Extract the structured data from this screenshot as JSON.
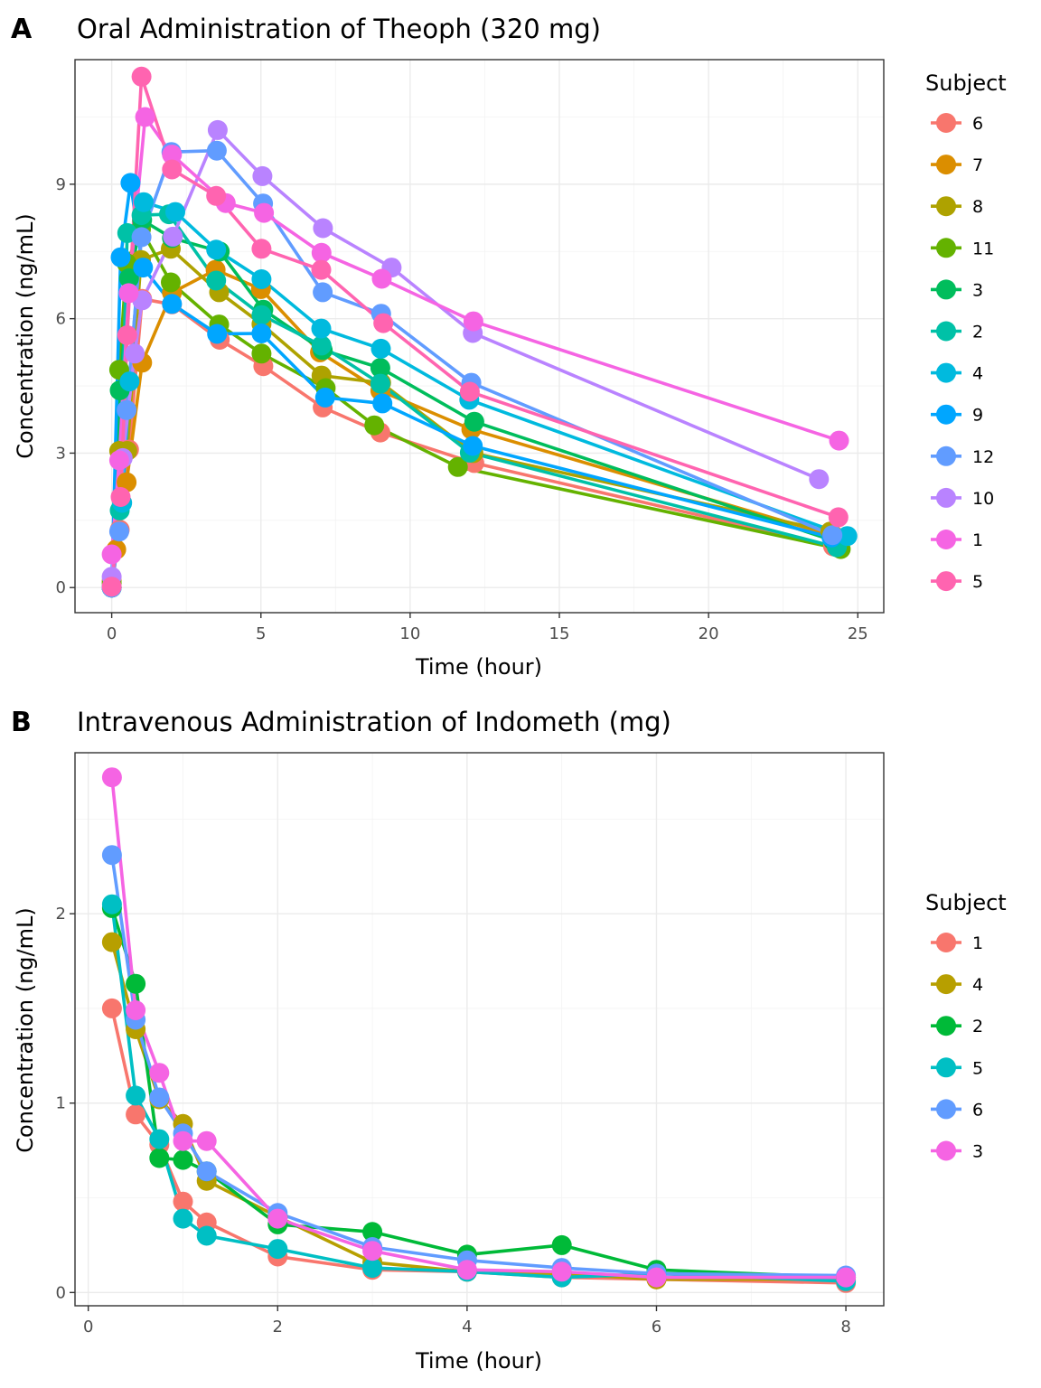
{
  "chart_data": [
    {
      "tag": "A",
      "type": "line",
      "title": "Oral Administration of Theoph (320 mg)",
      "xlabel": "Time (hour)",
      "ylabel": "Concentration (ng/mL)",
      "xlim": [
        -1.23,
        25.87
      ],
      "ylim": [
        -0.56,
        11.78
      ],
      "xticks": [
        0,
        5,
        10,
        15,
        20,
        25
      ],
      "yticks": [
        0,
        3,
        6,
        9
      ],
      "grid": true,
      "legend": {
        "title": "Subject",
        "placement": "right"
      },
      "series": [
        {
          "name": "6",
          "color": "#F8766D",
          "x": [
            0,
            0.27,
            0.58,
            1.02,
            2.02,
            3.62,
            5.08,
            7.07,
            9.0,
            12.15,
            24.17
          ],
          "y": [
            0,
            1.29,
            3.08,
            6.44,
            6.32,
            5.53,
            4.94,
            4.02,
            3.46,
            2.78,
            0.92
          ]
        },
        {
          "name": "7",
          "color": "#DB8E00",
          "x": [
            0,
            0.15,
            0.5,
            1.02,
            2.02,
            3.48,
            5.0,
            6.98,
            9.0,
            12.05,
            24.22
          ],
          "y": [
            0.15,
            0.85,
            2.35,
            5.02,
            6.58,
            7.09,
            6.66,
            5.25,
            4.39,
            3.53,
            1.15
          ]
        },
        {
          "name": "8",
          "color": "#AEA200",
          "x": [
            0,
            0.25,
            0.52,
            0.98,
            1.98,
            3.6,
            5.02,
            7.03,
            9.03,
            12.12,
            24.08
          ],
          "y": [
            0,
            3.05,
            3.05,
            7.31,
            7.56,
            6.59,
            5.88,
            4.73,
            4.57,
            3.0,
            1.25
          ]
        },
        {
          "name": "11",
          "color": "#64B200",
          "x": [
            0,
            0.25,
            0.5,
            0.98,
            1.98,
            3.6,
            5.02,
            7.17,
            8.8,
            11.6,
            24.43
          ],
          "y": [
            0.1,
            4.86,
            7.24,
            8.0,
            6.81,
            5.87,
            5.22,
            4.45,
            3.62,
            2.69,
            0.86
          ]
        },
        {
          "name": "3",
          "color": "#00BD5C",
          "x": [
            0,
            0.27,
            0.58,
            1.02,
            2.02,
            3.62,
            5.08,
            7.07,
            9.0,
            12.15,
            24.17
          ],
          "y": [
            0,
            4.4,
            6.9,
            8.2,
            7.8,
            7.5,
            6.2,
            5.3,
            4.9,
            3.7,
            1.05
          ]
        },
        {
          "name": "2",
          "color": "#00C1A7",
          "x": [
            0,
            0.27,
            0.52,
            1.0,
            1.92,
            3.5,
            5.02,
            7.03,
            9.0,
            12.0,
            24.3
          ],
          "y": [
            0,
            1.72,
            7.91,
            8.31,
            8.33,
            6.85,
            6.08,
            5.4,
            4.55,
            3.01,
            0.9
          ]
        },
        {
          "name": "4",
          "color": "#00BADE",
          "x": [
            0,
            0.35,
            0.6,
            1.07,
            2.13,
            3.5,
            5.02,
            7.02,
            9.02,
            11.98,
            24.65
          ],
          "y": [
            0,
            1.89,
            4.6,
            8.6,
            8.38,
            7.54,
            6.88,
            5.78,
            5.33,
            4.19,
            1.15
          ]
        },
        {
          "name": "9",
          "color": "#00A6FF",
          "x": [
            0,
            0.3,
            0.63,
            1.05,
            2.02,
            3.53,
            5.02,
            7.15,
            9.07,
            12.1,
            24.12
          ],
          "y": [
            0,
            7.37,
            9.03,
            7.14,
            6.33,
            5.66,
            5.67,
            4.24,
            4.11,
            3.16,
            1.12
          ]
        },
        {
          "name": "12",
          "color": "#619CFF",
          "x": [
            0,
            0.25,
            0.5,
            1.0,
            2.0,
            3.52,
            5.07,
            7.07,
            9.03,
            12.05,
            24.15
          ],
          "y": [
            0,
            1.25,
            3.96,
            7.82,
            9.72,
            9.75,
            8.57,
            6.59,
            6.11,
            4.57,
            1.17
          ]
        },
        {
          "name": "10",
          "color": "#B983FF",
          "x": [
            0,
            0.37,
            0.77,
            1.02,
            2.05,
            3.55,
            5.05,
            7.08,
            9.38,
            12.1,
            23.7
          ],
          "y": [
            0.24,
            2.89,
            5.22,
            6.41,
            7.83,
            10.21,
            9.18,
            8.02,
            7.14,
            5.68,
            2.42
          ]
        },
        {
          "name": "1",
          "color": "#F564E3",
          "x": [
            0,
            0.25,
            0.57,
            1.12,
            2.02,
            3.82,
            5.1,
            7.03,
            9.05,
            12.12,
            24.37
          ],
          "y": [
            0.74,
            2.84,
            6.57,
            10.5,
            9.66,
            8.58,
            8.36,
            7.47,
            6.89,
            5.94,
            3.28
          ]
        },
        {
          "name": "5",
          "color": "#FF64B0",
          "x": [
            0,
            0.3,
            0.52,
            1.0,
            2.02,
            3.5,
            5.02,
            7.02,
            9.1,
            12.0,
            24.35
          ],
          "y": [
            0.02,
            2.02,
            5.63,
            11.4,
            9.33,
            8.74,
            7.56,
            7.09,
            5.9,
            4.37,
            1.57
          ]
        }
      ]
    },
    {
      "tag": "B",
      "type": "line",
      "title": "Intravenous Administration of Indometh (mg)",
      "xlabel": "Time (hour)",
      "ylabel": "Concentration (ng/mL)",
      "xlim": [
        -0.14,
        8.4
      ],
      "ylim": [
        -0.07,
        2.85
      ],
      "xticks": [
        0,
        2,
        4,
        6,
        8
      ],
      "yticks": [
        0,
        1,
        2
      ],
      "grid": true,
      "legend": {
        "title": "Subject",
        "placement": "right"
      },
      "series": [
        {
          "name": "1",
          "color": "#F8766D",
          "x": [
            0.25,
            0.5,
            0.75,
            1,
            1.25,
            2,
            3,
            4,
            5,
            6,
            8
          ],
          "y": [
            1.5,
            0.94,
            0.78,
            0.48,
            0.37,
            0.19,
            0.12,
            0.11,
            0.08,
            0.07,
            0.05
          ]
        },
        {
          "name": "4",
          "color": "#B79F00",
          "x": [
            0.25,
            0.5,
            0.75,
            1,
            1.25,
            2,
            3,
            4,
            5,
            6,
            8
          ],
          "y": [
            1.85,
            1.39,
            1.02,
            0.89,
            0.59,
            0.4,
            0.16,
            0.11,
            0.1,
            0.07,
            0.07
          ]
        },
        {
          "name": "2",
          "color": "#00BA38",
          "x": [
            0.25,
            0.5,
            0.75,
            1,
            1.25,
            2,
            3,
            4,
            5,
            6,
            8
          ],
          "y": [
            2.03,
            1.63,
            0.71,
            0.7,
            0.64,
            0.36,
            0.32,
            0.2,
            0.25,
            0.12,
            0.08
          ]
        },
        {
          "name": "5",
          "color": "#00BFC4",
          "x": [
            0.25,
            0.5,
            0.75,
            1,
            1.25,
            2,
            3,
            4,
            5,
            6,
            8
          ],
          "y": [
            2.05,
            1.04,
            0.81,
            0.39,
            0.3,
            0.23,
            0.13,
            0.11,
            0.08,
            0.1,
            0.06
          ]
        },
        {
          "name": "6",
          "color": "#619CFF",
          "x": [
            0.25,
            0.5,
            0.75,
            1,
            1.25,
            2,
            3,
            4,
            5,
            6,
            8
          ],
          "y": [
            2.31,
            1.44,
            1.03,
            0.84,
            0.64,
            0.42,
            0.24,
            0.17,
            0.13,
            0.1,
            0.09
          ]
        },
        {
          "name": "3",
          "color": "#F564E3",
          "x": [
            0.25,
            0.5,
            0.75,
            1,
            1.25,
            2,
            3,
            4,
            5,
            6,
            8
          ],
          "y": [
            2.72,
            1.49,
            1.16,
            0.8,
            0.8,
            0.39,
            0.22,
            0.12,
            0.11,
            0.08,
            0.08
          ]
        }
      ]
    }
  ]
}
